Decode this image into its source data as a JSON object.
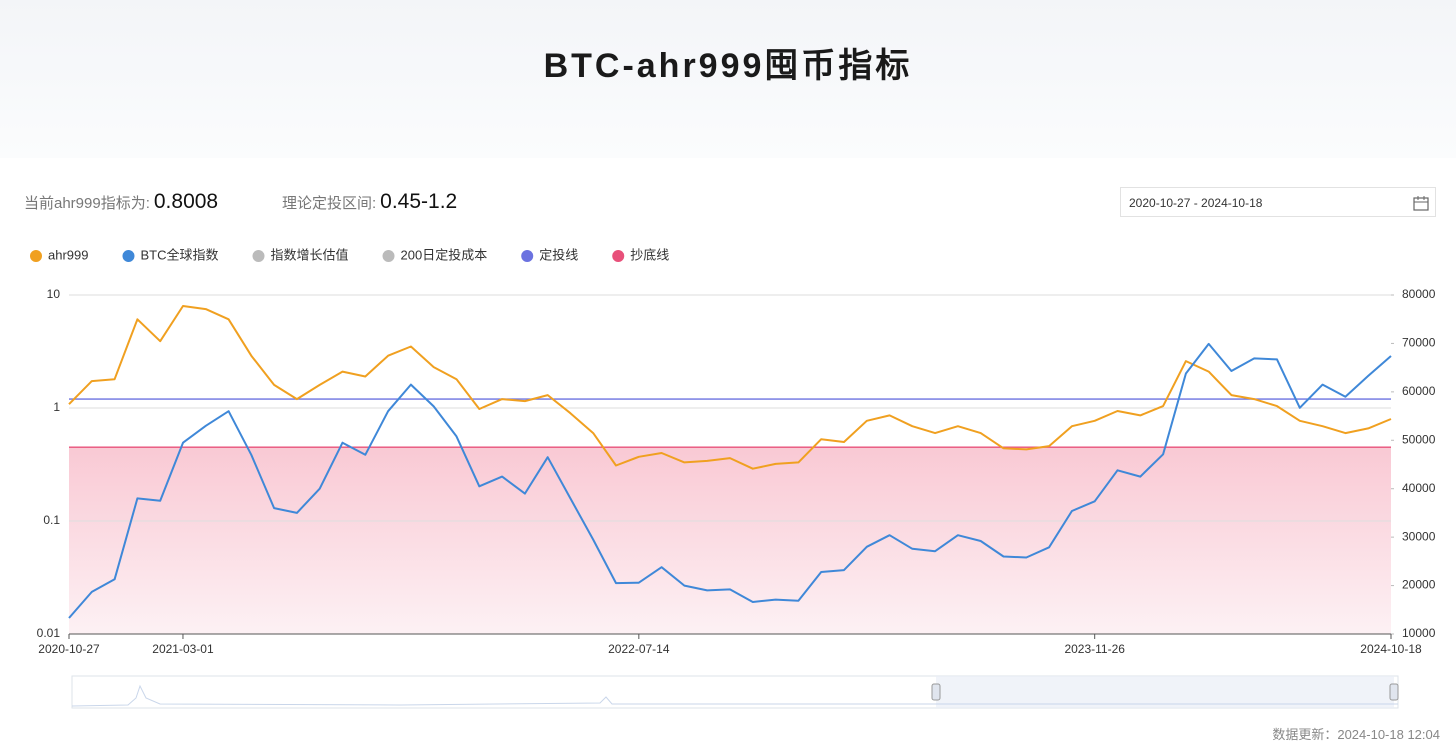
{
  "header": {
    "title": "BTC-ahr999囤币指标"
  },
  "stats": {
    "current_label": "当前ahr999指标为:",
    "current_value": "0.8008",
    "range_label": "理论定投区间:",
    "range_value": "0.45-1.2"
  },
  "date_range": "2020-10-27 - 2024-10-18",
  "footer": "数据更新：2024-10-18 12:04",
  "chart_data": {
    "type": "line",
    "categories": [
      "2020-10-27",
      null,
      null,
      null,
      null,
      "2021-03-01",
      null,
      null,
      null,
      null,
      null,
      null,
      null,
      null,
      null,
      null,
      null,
      null,
      null,
      null,
      null,
      null,
      null,
      null,
      null,
      "2022-07-14",
      null,
      null,
      null,
      null,
      null,
      null,
      null,
      null,
      null,
      null,
      null,
      null,
      null,
      null,
      null,
      null,
      null,
      null,
      null,
      "2023-11-26",
      null,
      null,
      null,
      null,
      null,
      null,
      null,
      null,
      null,
      null,
      null,
      null,
      "2024-10-18"
    ],
    "series": [
      {
        "name": "ahr999",
        "color": "#f0a020",
        "axis": "y",
        "values": [
          1.08,
          1.73,
          1.8,
          6.1,
          3.9,
          8.0,
          7.5,
          6.1,
          2.9,
          1.6,
          1.2,
          1.6,
          2.1,
          1.9,
          2.9,
          3.5,
          2.3,
          1.8,
          0.98,
          1.2,
          1.15,
          1.3,
          0.9,
          0.6,
          0.31,
          0.37,
          0.4,
          0.33,
          0.34,
          0.36,
          0.29,
          0.32,
          0.33,
          0.53,
          0.5,
          0.77,
          0.86,
          0.69,
          0.6,
          0.69,
          0.6,
          0.44,
          0.43,
          0.46,
          0.69,
          0.77,
          0.94,
          0.86,
          1.04,
          2.6,
          2.1,
          1.3,
          1.2,
          1.04,
          0.77,
          0.69,
          0.6,
          0.66,
          0.8
        ]
      },
      {
        "name": "BTC全球指数",
        "color": "#3f88d8",
        "axis": "y2",
        "values": [
          13300,
          18700,
          21300,
          38000,
          37500,
          49500,
          53000,
          56000,
          47000,
          36000,
          35000,
          40000,
          49500,
          47000,
          56000,
          61500,
          57000,
          50800,
          40500,
          42500,
          39000,
          46500,
          38000,
          29500,
          20500,
          20600,
          23800,
          20000,
          19000,
          19200,
          16600,
          17100,
          16850,
          22800,
          23200,
          28000,
          30400,
          27600,
          27100,
          30400,
          29200,
          26000,
          25800,
          27900,
          35400,
          37400,
          43800,
          42500,
          47100,
          63800,
          69900,
          64300,
          66900,
          66700,
          56700,
          61500,
          59000,
          63300,
          67400
        ]
      }
    ],
    "hidden_series": [
      {
        "name": "指数增长估值"
      },
      {
        "name": "200日定投成本"
      }
    ],
    "lines": [
      {
        "name": "定投线",
        "value": 1.2,
        "color": "#6b72e0"
      },
      {
        "name": "抄底线",
        "value": 0.45,
        "color": "#e8507a"
      }
    ],
    "ylim": [
      0.01,
      10
    ],
    "yticks": [
      0.01,
      0.1,
      1,
      10
    ],
    "log_y": true,
    "y2lim": [
      10000,
      80000
    ],
    "y2ticks": [
      10000,
      20000,
      30000,
      40000,
      50000,
      60000,
      70000,
      80000
    ],
    "grid": true
  }
}
